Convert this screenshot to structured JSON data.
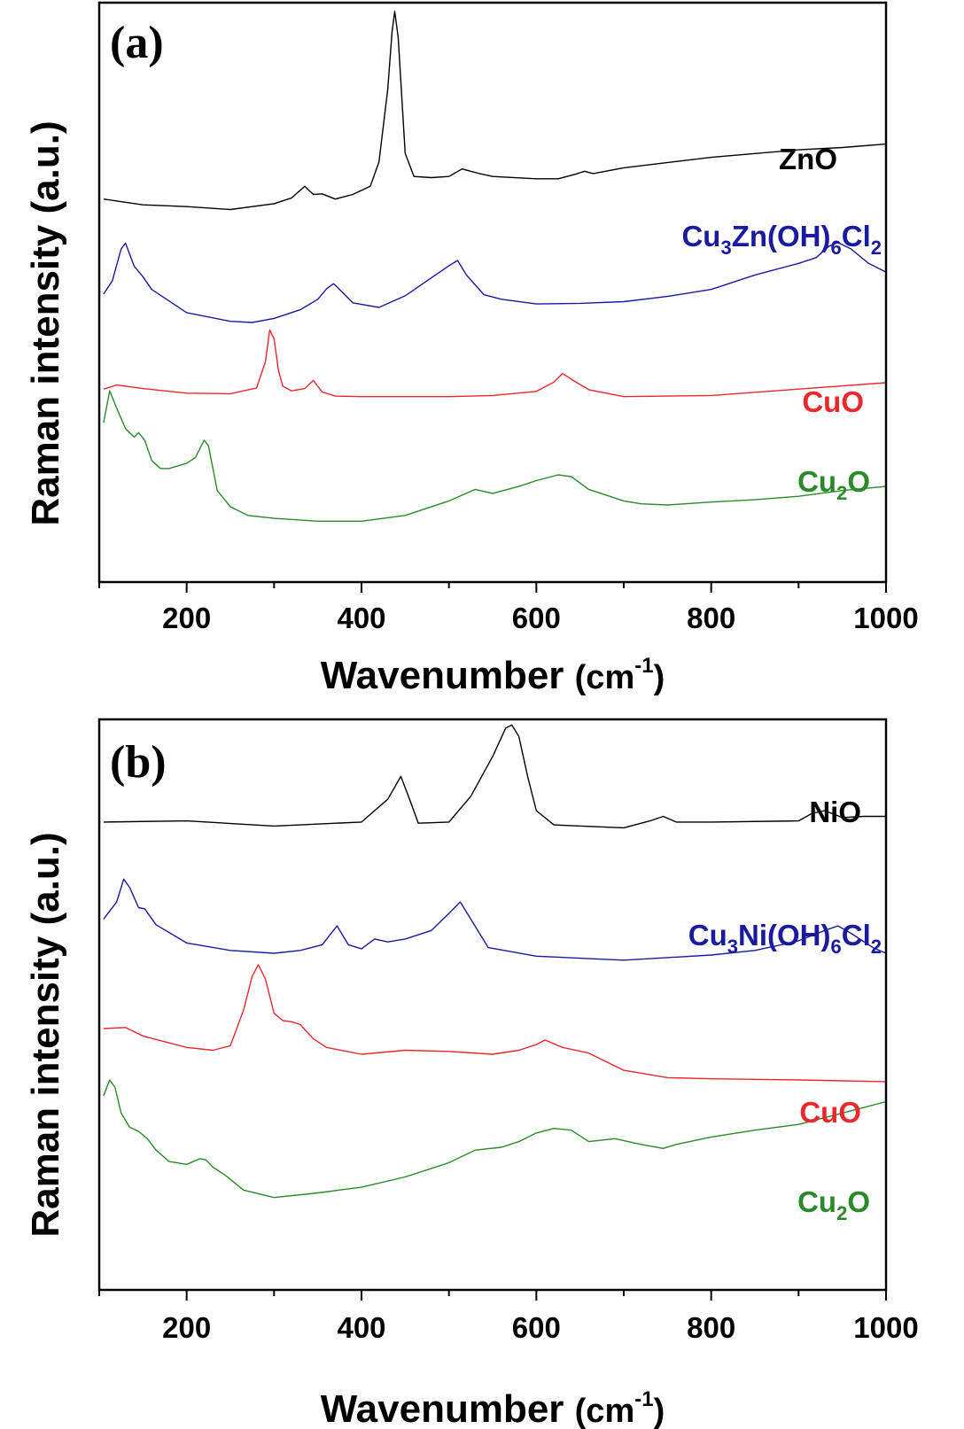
{
  "chart_data": [
    {
      "type": "line",
      "panel_label": "(a)",
      "xlabel": "Wavenumber",
      "xunit": "(cm",
      "xunit_exp": "-1",
      "xunit_close": ")",
      "ylabel": "Raman intensity (a.u.)",
      "xlim": [
        100,
        1000
      ],
      "xticks": [
        200,
        400,
        600,
        800,
        1000
      ],
      "xticklabels": [
        "200",
        "400",
        "600",
        "800",
        "1000"
      ],
      "series": [
        {
          "name": "ZnO",
          "label_parts": [
            [
              "ZnO",
              ""
            ]
          ],
          "color": "#000000",
          "x": [
            105,
            150,
            200,
            250,
            300,
            320,
            335,
            345,
            355,
            370,
            390,
            410,
            420,
            430,
            435,
            438,
            442,
            450,
            460,
            480,
            500,
            515,
            525,
            535,
            550,
            600,
            625,
            645,
            655,
            665,
            700,
            800,
            900,
            950,
            1000
          ],
          "y": [
            66.1,
            65.1,
            64.8,
            64.3,
            65.3,
            66.3,
            68.3,
            66.9,
            67.0,
            66.1,
            66.9,
            68.3,
            72.5,
            85.0,
            95.0,
            98.5,
            94.0,
            74.0,
            70.0,
            69.8,
            70.0,
            71.3,
            70.9,
            70.5,
            70.0,
            69.6,
            69.6,
            70.4,
            70.9,
            70.5,
            71.5,
            73.3,
            74.6,
            75.0,
            75.6
          ]
        },
        {
          "name": "Cu3Zn(OH)6Cl2",
          "label_parts": [
            [
              "Cu",
              ""
            ],
            [
              "3",
              "sub"
            ],
            [
              "Zn(OH)",
              ""
            ],
            [
              "6",
              "sub"
            ],
            [
              "Cl",
              ""
            ],
            [
              "2",
              "sub"
            ]
          ],
          "color": "#1a1aa0",
          "x": [
            105,
            115,
            125,
            130,
            140,
            150,
            160,
            200,
            250,
            275,
            300,
            330,
            350,
            360,
            368,
            375,
            390,
            420,
            450,
            480,
            500,
            510,
            520,
            540,
            560,
            600,
            650,
            700,
            750,
            800,
            850,
            900,
            920,
            935,
            945,
            960,
            980,
            1000
          ],
          "y": [
            49.7,
            52.0,
            57.5,
            58.5,
            54.5,
            52.7,
            50.5,
            46.5,
            45.0,
            44.8,
            45.5,
            47.0,
            48.8,
            50.6,
            51.5,
            50.5,
            48.2,
            47.4,
            49.4,
            52.5,
            54.6,
            55.5,
            53.0,
            49.6,
            48.8,
            48.0,
            48.1,
            48.4,
            49.3,
            50.5,
            53.0,
            55.0,
            56.0,
            58.0,
            58.6,
            57.5,
            55.0,
            53.5
          ]
        },
        {
          "name": "CuO",
          "label_parts": [
            [
              "CuO",
              ""
            ]
          ],
          "color": "#e8282c",
          "x": [
            105,
            120,
            150,
            200,
            250,
            280,
            290,
            295,
            300,
            305,
            310,
            320,
            335,
            345,
            355,
            370,
            400,
            450,
            500,
            550,
            600,
            620,
            630,
            640,
            660,
            700,
            800,
            900,
            1000
          ],
          "y": [
            33.3,
            34.0,
            33.4,
            32.6,
            32.5,
            33.5,
            38.0,
            43.5,
            42.0,
            36.5,
            33.8,
            33.0,
            33.4,
            34.8,
            32.8,
            32.1,
            32.0,
            32.0,
            32.0,
            32.2,
            32.9,
            34.5,
            36.0,
            35.0,
            33.2,
            32.0,
            32.2,
            33.3,
            34.4
          ]
        },
        {
          "name": "Cu2O",
          "label_parts": [
            [
              "Cu",
              ""
            ],
            [
              "2",
              "sub"
            ],
            [
              "O",
              ""
            ]
          ],
          "color": "#2a8a2a",
          "x": [
            105,
            112,
            120,
            130,
            140,
            145,
            152,
            160,
            170,
            180,
            200,
            210,
            220,
            225,
            235,
            250,
            270,
            300,
            350,
            400,
            450,
            500,
            530,
            550,
            580,
            600,
            625,
            640,
            660,
            680,
            700,
            720,
            750,
            800,
            850,
            900,
            950,
            1000
          ],
          "y": [
            27.5,
            33.0,
            30.0,
            26.5,
            25.0,
            25.8,
            24.5,
            21.0,
            19.6,
            19.6,
            20.5,
            21.5,
            24.5,
            23.5,
            15.8,
            13.0,
            11.5,
            11.0,
            10.5,
            10.5,
            11.5,
            14.0,
            16.0,
            15.3,
            16.5,
            17.5,
            18.5,
            18.2,
            16.0,
            15.0,
            14.0,
            13.5,
            13.3,
            13.8,
            14.2,
            14.8,
            15.8,
            16.5
          ]
        }
      ]
    },
    {
      "type": "line",
      "panel_label": "(b)",
      "xlabel": "Wavenumber",
      "xunit": "(cm",
      "xunit_exp": "-1",
      "xunit_close": ")",
      "ylabel": "Raman intensity (a.u.)",
      "xlim": [
        100,
        1000
      ],
      "xticks": [
        200,
        400,
        600,
        800,
        1000
      ],
      "xticklabels": [
        "200",
        "400",
        "600",
        "800",
        "1000"
      ],
      "series": [
        {
          "name": "NiO",
          "label_parts": [
            [
              "NiO",
              ""
            ]
          ],
          "color": "#000000",
          "x": [
            105,
            200,
            300,
            400,
            430,
            445,
            455,
            465,
            500,
            525,
            550,
            565,
            572,
            580,
            590,
            600,
            620,
            700,
            730,
            745,
            760,
            800,
            900,
            915,
            930,
            950,
            975,
            1000
          ],
          "y": [
            82.0,
            82.2,
            81.3,
            82.0,
            86.0,
            90.0,
            86.0,
            81.8,
            82.0,
            86.5,
            93.5,
            98.5,
            99.0,
            97.0,
            90.0,
            84.0,
            81.5,
            81.0,
            82.2,
            83.0,
            82.0,
            82.0,
            82.2,
            83.5,
            84.0,
            82.8,
            83.0,
            83.0
          ]
        },
        {
          "name": "Cu3Ni(OH)6Cl2",
          "label_parts": [
            [
              "Cu",
              ""
            ],
            [
              "3",
              "sub"
            ],
            [
              "Ni(OH)",
              ""
            ],
            [
              "6",
              "sub"
            ],
            [
              "Cl",
              ""
            ],
            [
              "2",
              "sub"
            ]
          ],
          "color": "#1a1aa0",
          "x": [
            105,
            120,
            128,
            135,
            145,
            152,
            165,
            200,
            250,
            300,
            330,
            355,
            372,
            385,
            400,
            415,
            430,
            450,
            480,
            500,
            513,
            525,
            545,
            600,
            700,
            800,
            850,
            880,
            900,
            930,
            945,
            960,
            985,
            1000
          ],
          "y": [
            65.0,
            68.0,
            72.0,
            70.5,
            67.0,
            66.8,
            64.0,
            60.8,
            59.5,
            59.0,
            59.5,
            60.5,
            63.8,
            60.5,
            59.8,
            61.5,
            61.0,
            61.5,
            63.0,
            66.0,
            68.0,
            65.0,
            60.0,
            58.5,
            57.8,
            58.7,
            59.5,
            60.5,
            61.2,
            63.0,
            63.8,
            62.5,
            60.0,
            59.0
          ]
        },
        {
          "name": "CuO",
          "label_parts": [
            [
              "CuO",
              ""
            ]
          ],
          "color": "#e8282c",
          "x": [
            105,
            130,
            150,
            200,
            230,
            250,
            265,
            275,
            282,
            290,
            300,
            310,
            320,
            330,
            345,
            360,
            400,
            450,
            500,
            550,
            580,
            600,
            610,
            630,
            660,
            700,
            750,
            800,
            900,
            1000
          ],
          "y": [
            45.8,
            46.0,
            44.5,
            42.5,
            42.0,
            42.8,
            49.0,
            55.0,
            57.0,
            54.5,
            48.5,
            47.2,
            47.0,
            46.5,
            44.0,
            42.5,
            41.3,
            42.0,
            41.8,
            41.3,
            42.0,
            43.0,
            43.8,
            42.5,
            41.5,
            38.5,
            37.2,
            37.0,
            36.8,
            36.5
          ]
        },
        {
          "name": "Cu2O",
          "label_parts": [
            [
              "Cu",
              ""
            ],
            [
              "2",
              "sub"
            ],
            [
              "O",
              ""
            ]
          ],
          "color": "#2a8a2a",
          "x": [
            105,
            112,
            118,
            125,
            135,
            145,
            155,
            165,
            180,
            200,
            215,
            222,
            230,
            245,
            265,
            300,
            350,
            400,
            450,
            500,
            530,
            560,
            580,
            600,
            620,
            640,
            660,
            690,
            720,
            745,
            760,
            800,
            850,
            900,
            950,
            1000
          ],
          "y": [
            34.0,
            36.8,
            35.5,
            31.0,
            28.5,
            27.8,
            26.5,
            24.5,
            22.5,
            22.0,
            23.0,
            22.8,
            21.5,
            20.0,
            17.5,
            16.2,
            17.0,
            18.0,
            19.8,
            22.3,
            24.5,
            25.0,
            26.0,
            27.5,
            28.3,
            28.0,
            26.0,
            26.5,
            25.5,
            24.8,
            25.5,
            26.8,
            28.0,
            29.0,
            31.0,
            33.0
          ]
        }
      ]
    }
  ]
}
